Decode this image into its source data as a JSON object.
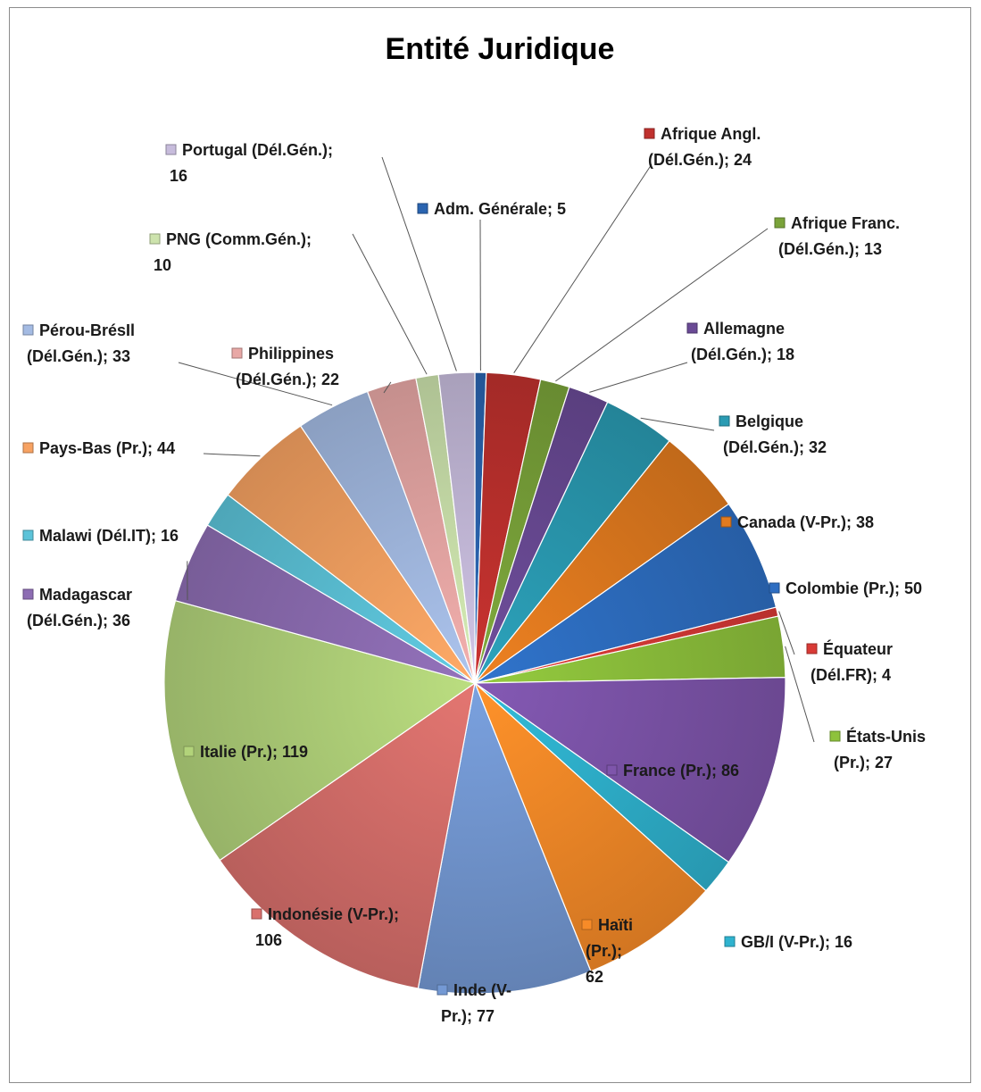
{
  "chart_data": {
    "type": "pie",
    "title": "Entité Juridique",
    "slices": [
      {
        "name": "Adm. Générale",
        "value": 5,
        "color": "#2a64b0",
        "label": "Adm. Générale; 5"
      },
      {
        "name": "Afrique Angl. (Dél.Gén.)",
        "value": 24,
        "color": "#c0312e",
        "label": "Afrique Angl.|(Dél.Gén.); 24"
      },
      {
        "name": "Afrique Franc. (Dél.Gén.)",
        "value": 13,
        "color": "#7aa33a",
        "label": "Afrique Franc.|(Dél.Gén.); 13"
      },
      {
        "name": "Allemagne (Dél.Gén.)",
        "value": 18,
        "color": "#6a4a95",
        "label": "Allemagne|(Dél.Gén.); 18"
      },
      {
        "name": "Belgique (Dél.Gén.)",
        "value": 32,
        "color": "#2a9bb3",
        "label": "Belgique|(Dél.Gén.); 32"
      },
      {
        "name": "Canada (V-Pr.)",
        "value": 38,
        "color": "#e37b1f",
        "label": "Canada (V-Pr.); 38"
      },
      {
        "name": "Colombie (Pr.)",
        "value": 50,
        "color": "#2e6ec2",
        "label": "Colombie (Pr.); 50"
      },
      {
        "name": "Équateur (Dél.FR)",
        "value": 4,
        "color": "#d93a36",
        "label": "Équateur|(Dél.FR); 4"
      },
      {
        "name": "États-Unis (Pr.)",
        "value": 27,
        "color": "#8ec23c",
        "label": "États-Unis|(Pr.); 27"
      },
      {
        "name": "France (Pr.)",
        "value": 86,
        "color": "#7e55ab",
        "label": "France (Pr.); 86"
      },
      {
        "name": "GB/I (V-Pr.)",
        "value": 16,
        "color": "#2fb3cf",
        "label": "GB/I (V-Pr.); 16"
      },
      {
        "name": "Haïti (Pr.)",
        "value": 62,
        "color": "#f78b28",
        "label": "Haïti|(Pr.);|62"
      },
      {
        "name": "Inde (V-Pr.)",
        "value": 77,
        "color": "#7499d4",
        "label": "Inde (V-|Pr.); 77"
      },
      {
        "name": "Indonésie (V-Pr.)",
        "value": 106,
        "color": "#d9706c",
        "label": "Indonésie (V-Pr.);|106"
      },
      {
        "name": "Italie (Pr.)",
        "value": 119,
        "color": "#b2d37a",
        "label": "Italie (Pr.); 119"
      },
      {
        "name": "Madagascar (Dél.Gén.)",
        "value": 36,
        "color": "#8d6db3",
        "label": "Madagascar|(Dél.Gén.); 36"
      },
      {
        "name": "Malawi (Dél.IT)",
        "value": 16,
        "color": "#5cc3d9",
        "label": "Malawi (Dél.IT); 16"
      },
      {
        "name": "Pays-Bas (Pr.)",
        "value": 44,
        "color": "#f7a262",
        "label": "Pays-Bas (Pr.); 44"
      },
      {
        "name": "Pérou-Brésil (Dél.Gén.)",
        "value": 33,
        "color": "#a4bbe3",
        "label": "Pérou-BrésIl|(Dél.Gén.); 33"
      },
      {
        "name": "Philippines (Dél.Gén.)",
        "value": 22,
        "color": "#e8a8a6",
        "label": "Philippines|(Dél.Gén.); 22"
      },
      {
        "name": "PNG (Comm.Gén.)",
        "value": 10,
        "color": "#cde3ad",
        "label": "PNG (Comm.Gén.);|10"
      },
      {
        "name": "Portugal (Dél.Gén.)",
        "value": 16,
        "color": "#c7bcdc",
        "label": "Portugal (Dél.Gén.);|16"
      }
    ],
    "legend": "none"
  }
}
